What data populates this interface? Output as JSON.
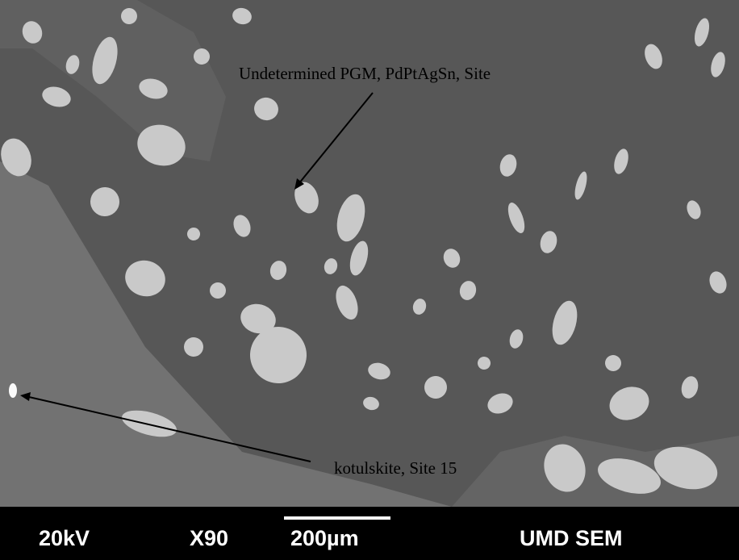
{
  "annotations": [
    {
      "label": "Undetermined PGM, PdPtAgSn, Site"
    },
    {
      "label": "kotulskite, Site 15"
    }
  ],
  "footer": {
    "voltage": "20kV",
    "magnification": "X90",
    "scale": "200µm",
    "lab": "UMD SEM"
  }
}
